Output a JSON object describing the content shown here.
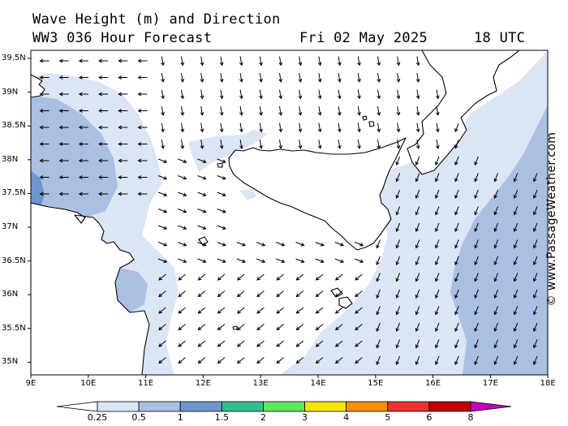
{
  "header": {
    "title": "Wave Height (m) and Direction",
    "forecast": "WW3 036 Hour Forecast",
    "date": "Fri 02 May 2025",
    "time": "18 UTC"
  },
  "watermark": "© www.PassageWeather.com",
  "map": {
    "lat_labels": [
      "39.5N",
      "39N",
      "38.5N",
      "38N",
      "37.5N",
      "37N",
      "36.5N",
      "36N",
      "35.5N",
      "35N"
    ],
    "lon_labels": [
      "9E",
      "10E",
      "11E",
      "12E",
      "13E",
      "14E",
      "15E",
      "16E",
      "17E",
      "18E"
    ],
    "lat_range": [
      34.8,
      39.6
    ],
    "lon_range": [
      9,
      18
    ],
    "colors": {
      "land": "#ffffff",
      "sea_base": "#ffffff",
      "coast": "#000000",
      "arrow": "#000000"
    }
  },
  "legend": {
    "labels": [
      "0.25",
      "0.5",
      "1",
      "1.5",
      "2",
      "3",
      "4",
      "5",
      "6",
      "8"
    ],
    "unit": "m",
    "colors": [
      "#ffffff",
      "#dbe5f5",
      "#a9c0e2",
      "#6e95cd",
      "#2fbf93",
      "#5ee65e",
      "#f5e600",
      "#f78f00",
      "#ee3030",
      "#c00000",
      "#c000c0"
    ]
  }
}
